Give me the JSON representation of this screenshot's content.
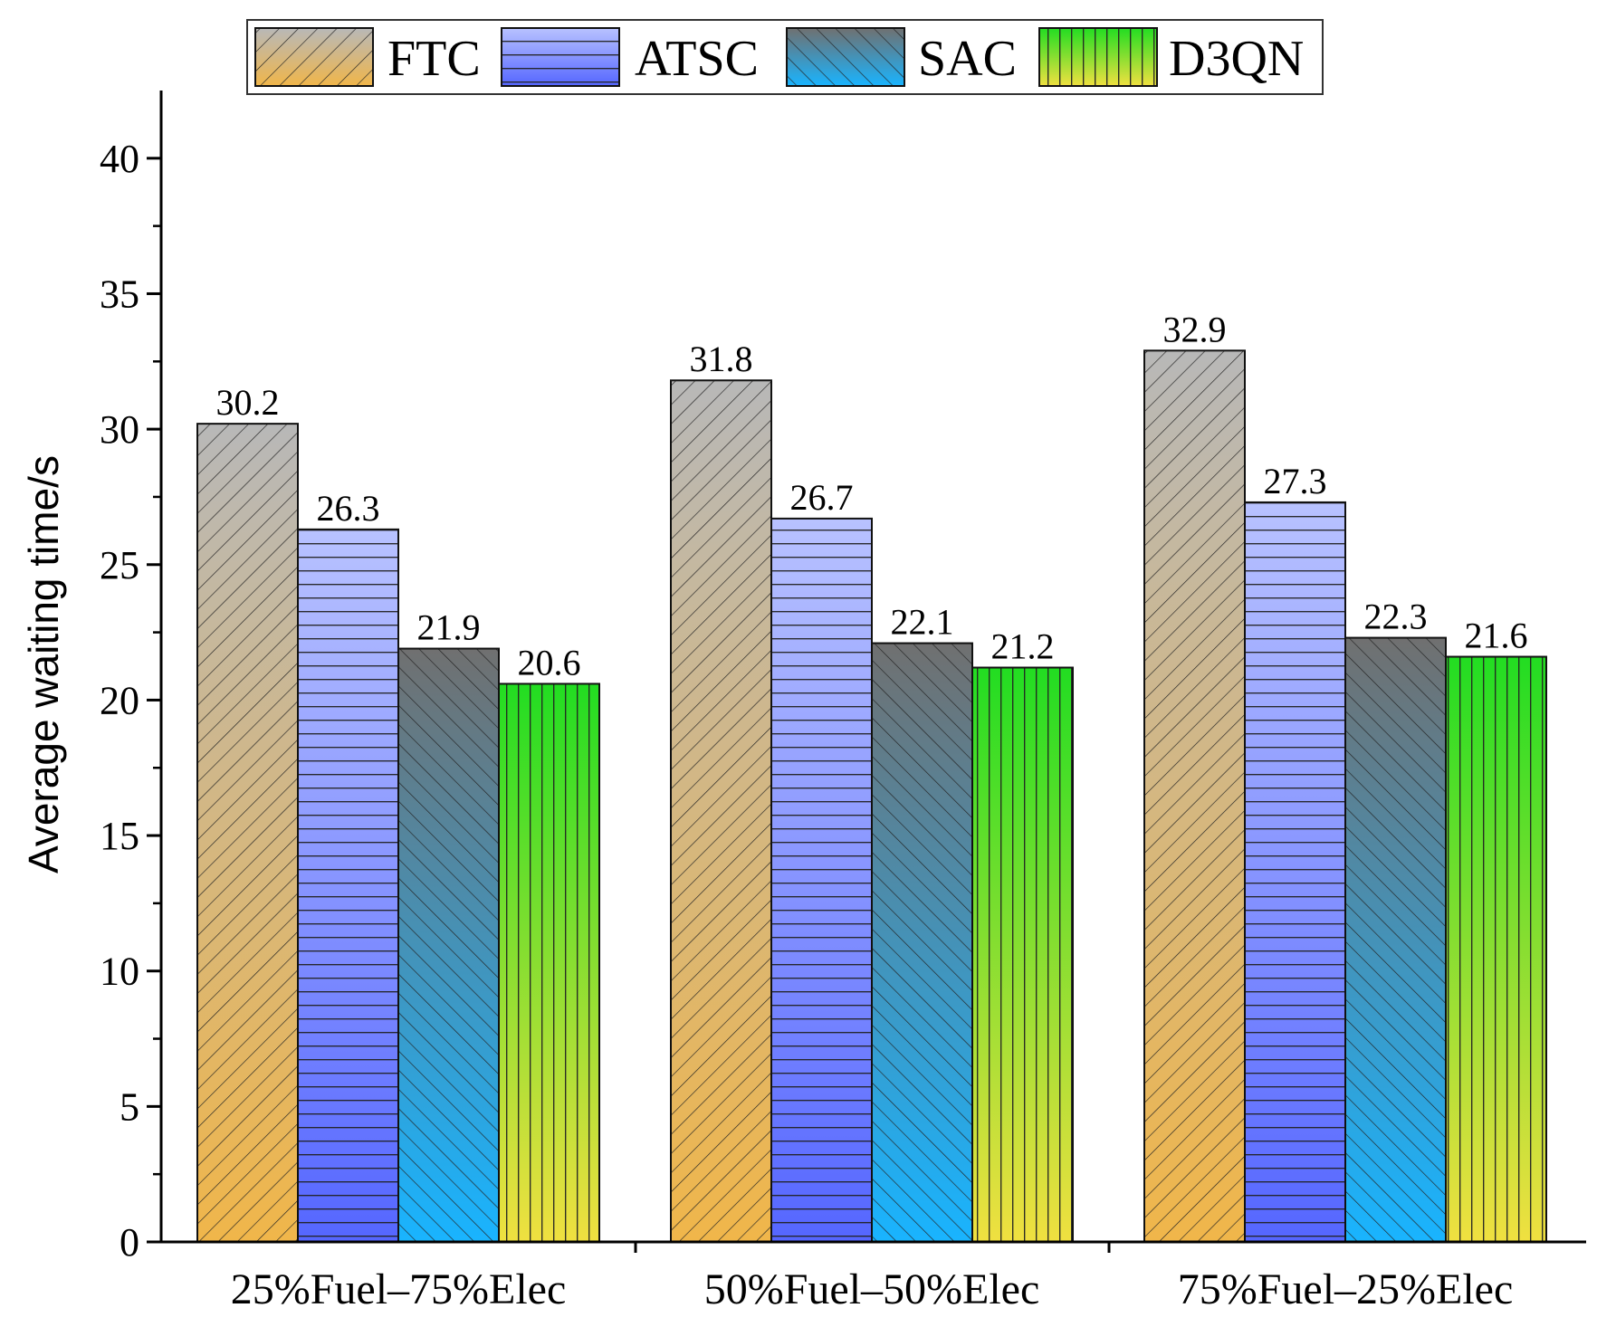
{
  "chart_data": {
    "type": "bar",
    "title": "",
    "xlabel": "",
    "ylabel": "Average waiting time/s",
    "ylim": [
      0,
      42.5
    ],
    "yticks": [
      0,
      5,
      10,
      15,
      20,
      25,
      30,
      35,
      40
    ],
    "categories": [
      "25%Fuel–75%Elec",
      "50%Fuel–50%Elec",
      "75%Fuel–25%Elec"
    ],
    "series": [
      {
        "name": "FTC",
        "values": [
          30.2,
          31.8,
          32.9
        ],
        "labels": [
          "30.2",
          "31.8",
          "32.9"
        ]
      },
      {
        "name": "ATSC",
        "values": [
          26.3,
          26.7,
          27.3
        ],
        "labels": [
          "26.3",
          "26.7",
          "27.3"
        ]
      },
      {
        "name": "SAC",
        "values": [
          21.9,
          22.1,
          22.3
        ],
        "labels": [
          "21.9",
          "22.1",
          "22.3"
        ]
      },
      {
        "name": "D3QN",
        "values": [
          20.6,
          21.2,
          21.6
        ],
        "labels": [
          "20.6",
          "21.2",
          "21.6"
        ]
      }
    ],
    "legend_position": "top",
    "grid": false
  },
  "colors": {
    "FTC_top": "#b8b8b8",
    "FTC_bottom": "#f0b64a",
    "ATSC_top": "#b8c2ff",
    "ATSC_bottom": "#5566ff",
    "SAC_top": "#707070",
    "SAC_bottom": "#19b4ff",
    "D3QN_top": "#22dd22",
    "D3QN_bottom": "#f0e040"
  }
}
